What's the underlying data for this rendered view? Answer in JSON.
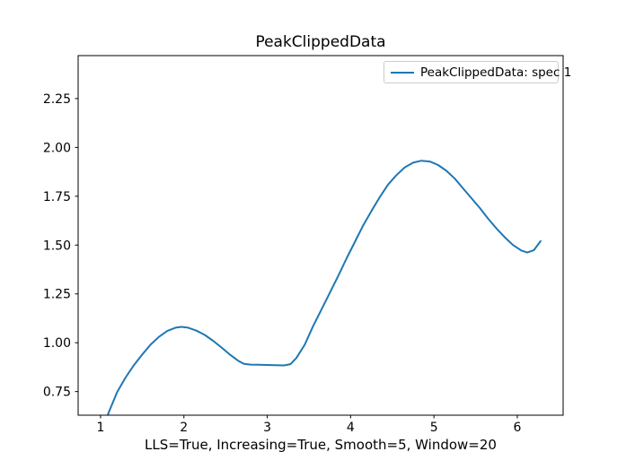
{
  "window": {
    "background": "#ffffff",
    "text_color": "#000000",
    "frame_color": "#000000"
  },
  "chart_data": {
    "type": "line",
    "title": "PeakClippedData",
    "xlabel": "LLS=True, Increasing=True, Smooth=5, Window=20",
    "ylabel": "",
    "grid": false,
    "xlim": [
      0.731,
      6.55
    ],
    "ylim": [
      0.629,
      2.47
    ],
    "x_ticks": [
      1,
      2,
      3,
      4,
      5,
      6
    ],
    "x_tick_labels": [
      "1",
      "2",
      "3",
      "4",
      "5",
      "6"
    ],
    "y_ticks": [
      0.75,
      1.0,
      1.25,
      1.5,
      1.75,
      2.0,
      2.25
    ],
    "y_tick_labels": [
      "0.75",
      "1.00",
      "1.25",
      "1.50",
      "1.75",
      "2.00",
      "2.25"
    ],
    "legend": {
      "position": "upper right",
      "entries": [
        {
          "label": "PeakClippedData: spec 1",
          "color": "#1f77b4"
        }
      ]
    },
    "series": [
      {
        "name": "PeakClippedData: spec 1",
        "color": "#1f77b4",
        "points": [
          [
            1.0,
            0.53
          ],
          [
            1.1,
            0.645
          ],
          [
            1.2,
            0.748
          ],
          [
            1.3,
            0.822
          ],
          [
            1.4,
            0.885
          ],
          [
            1.5,
            0.94
          ],
          [
            1.6,
            0.99
          ],
          [
            1.7,
            1.03
          ],
          [
            1.8,
            1.06
          ],
          [
            1.9,
            1.077
          ],
          [
            1.97,
            1.081
          ],
          [
            2.05,
            1.077
          ],
          [
            2.15,
            1.062
          ],
          [
            2.25,
            1.04
          ],
          [
            2.35,
            1.01
          ],
          [
            2.45,
            0.976
          ],
          [
            2.55,
            0.94
          ],
          [
            2.65,
            0.908
          ],
          [
            2.72,
            0.892
          ],
          [
            2.8,
            0.888
          ],
          [
            2.9,
            0.887
          ],
          [
            3.0,
            0.886
          ],
          [
            3.1,
            0.885
          ],
          [
            3.2,
            0.884
          ],
          [
            3.28,
            0.89
          ],
          [
            3.35,
            0.922
          ],
          [
            3.45,
            0.99
          ],
          [
            3.55,
            1.085
          ],
          [
            3.65,
            1.17
          ],
          [
            3.75,
            1.255
          ],
          [
            3.85,
            1.34
          ],
          [
            3.95,
            1.43
          ],
          [
            4.05,
            1.515
          ],
          [
            4.15,
            1.6
          ],
          [
            4.25,
            1.675
          ],
          [
            4.35,
            1.745
          ],
          [
            4.45,
            1.81
          ],
          [
            4.55,
            1.858
          ],
          [
            4.65,
            1.898
          ],
          [
            4.75,
            1.922
          ],
          [
            4.85,
            1.932
          ],
          [
            4.95,
            1.928
          ],
          [
            5.05,
            1.91
          ],
          [
            5.15,
            1.88
          ],
          [
            5.25,
            1.84
          ],
          [
            5.35,
            1.79
          ],
          [
            5.45,
            1.74
          ],
          [
            5.55,
            1.69
          ],
          [
            5.65,
            1.635
          ],
          [
            5.75,
            1.585
          ],
          [
            5.85,
            1.54
          ],
          [
            5.95,
            1.5
          ],
          [
            6.05,
            1.472
          ],
          [
            6.12,
            1.462
          ],
          [
            6.2,
            1.474
          ],
          [
            6.28,
            1.52
          ]
        ]
      }
    ]
  }
}
